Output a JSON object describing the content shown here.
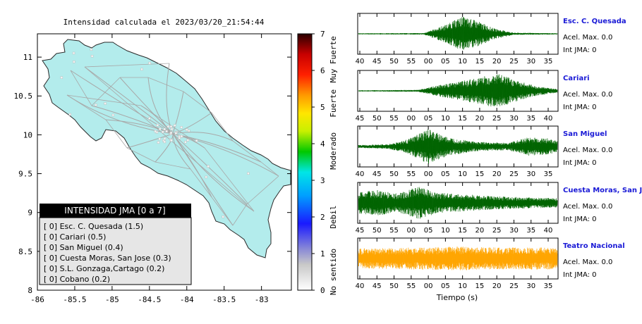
{
  "map_title": "Intensidad calculada el 2023/03/20_21:54:44",
  "map_axes": {
    "x_ticks": [
      "-86",
      "-85.5",
      "-85",
      "-84.5",
      "-84",
      "-83.5",
      "-83"
    ],
    "y_ticks": [
      "11",
      "10.5",
      "10",
      "9.5",
      "9",
      "8.5",
      "8"
    ],
    "xlim": [
      -86,
      -82.6
    ],
    "ylim": [
      8,
      11.3
    ]
  },
  "colorbar": {
    "ticks": [
      "0",
      "1",
      "2",
      "3",
      "4",
      "5",
      "6",
      "7"
    ],
    "labels": [
      "No sentido",
      "Debil",
      "Moderado",
      "Fuerte",
      "Muy Fuerte"
    ],
    "range": [
      0,
      7
    ]
  },
  "legend": {
    "title": "INTENSIDAD JMA [0 a 7]",
    "items": [
      "[ 0]  Esc. C. Quesada (1.5)",
      "[ 0]  Cariari (0.5)",
      "[ 0]  San Miguel (0.4)",
      "[ 0]  Cuesta Moras, San Jose (0.3)",
      "[ 0]  S.L. Gonzaga,Cartago (0.2)",
      "[ 0]  Cobano (0.2)"
    ]
  },
  "colors": {
    "land": "#b3ecec",
    "road": "#a8a8a8",
    "trace_green": "#006400",
    "trace_orange": "#ffa500",
    "station_title": "#1a1ad6"
  },
  "chart_data": {
    "type": "line",
    "xlabel": "Tiempo (s)",
    "series": [
      {
        "name": "Esc. C. Quesada",
        "accel": "Acel. Max. 0.0",
        "jma": "Int JMA: 0",
        "ticks": [
          "40",
          "45",
          "50",
          "55",
          "00",
          "05",
          "10",
          "15",
          "20",
          "25",
          "30",
          "35"
        ],
        "color": "#006400",
        "envelope": [
          [
            0,
            0.03
          ],
          [
            0.33,
            0.04
          ],
          [
            0.38,
            0.25
          ],
          [
            0.45,
            0.55
          ],
          [
            0.52,
            0.95
          ],
          [
            0.6,
            0.7
          ],
          [
            0.68,
            0.3
          ],
          [
            0.78,
            0.06
          ],
          [
            1,
            0.03
          ]
        ]
      },
      {
        "name": "Cariari",
        "accel": "Acel. Max. 0.0",
        "jma": "Int JMA: 0",
        "ticks": [
          "45",
          "50",
          "55",
          "00",
          "05",
          "10",
          "15",
          "20",
          "25",
          "30",
          "35",
          "40"
        ],
        "color": "#006400",
        "envelope": [
          [
            0,
            0.03
          ],
          [
            0.3,
            0.05
          ],
          [
            0.4,
            0.3
          ],
          [
            0.55,
            0.6
          ],
          [
            0.7,
            0.95
          ],
          [
            0.8,
            0.55
          ],
          [
            0.9,
            0.25
          ],
          [
            1,
            0.1
          ]
        ]
      },
      {
        "name": "San Miguel",
        "accel": "Acel. Max. 0.0",
        "jma": "Int JMA: 0",
        "ticks": [
          "40",
          "45",
          "50",
          "55",
          "00",
          "05",
          "10",
          "15",
          "20",
          "25",
          "30",
          "35"
        ],
        "color": "#006400",
        "envelope": [
          [
            0,
            0.08
          ],
          [
            0.15,
            0.12
          ],
          [
            0.25,
            0.4
          ],
          [
            0.35,
            0.95
          ],
          [
            0.45,
            0.5
          ],
          [
            0.6,
            0.25
          ],
          [
            0.75,
            0.2
          ],
          [
            0.85,
            0.5
          ],
          [
            0.95,
            0.45
          ],
          [
            1,
            0.3
          ]
        ]
      },
      {
        "name": "Cuesta Moras, San Jose",
        "accel": "Acel. Max. 0.0",
        "jma": "Int JMA: 0",
        "ticks": [
          "45",
          "50",
          "55",
          "00",
          "05",
          "10",
          "15",
          "20",
          "25",
          "30",
          "35",
          "40"
        ],
        "color": "#006400",
        "envelope": [
          [
            0,
            0.6
          ],
          [
            0.1,
            0.7
          ],
          [
            0.2,
            0.5
          ],
          [
            0.3,
            0.9
          ],
          [
            0.4,
            0.55
          ],
          [
            0.55,
            0.45
          ],
          [
            0.7,
            0.35
          ],
          [
            0.85,
            0.3
          ],
          [
            1,
            0.25
          ]
        ]
      },
      {
        "name": "Teatro Nacional",
        "accel": "Acel. Max. 0.0",
        "jma": "Int JMA: 0",
        "ticks": [
          "40",
          "45",
          "50",
          "55",
          "00",
          "05",
          "10",
          "15",
          "20",
          "25",
          "30",
          "35"
        ],
        "color": "#ffa500",
        "envelope": [
          [
            0,
            0.55
          ],
          [
            0.3,
            0.6
          ],
          [
            0.5,
            0.65
          ],
          [
            0.7,
            0.6
          ],
          [
            1,
            0.6
          ]
        ]
      }
    ]
  }
}
